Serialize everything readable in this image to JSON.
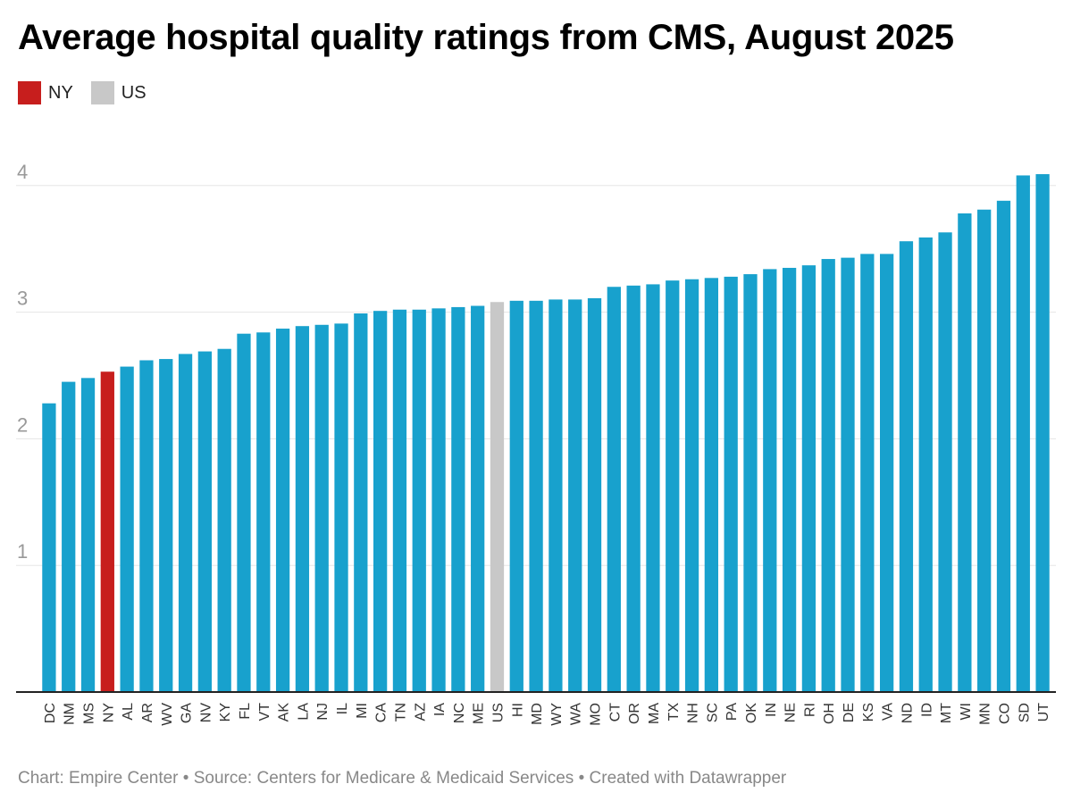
{
  "title": "Average hospital quality ratings from CMS, August 2025",
  "legend": [
    {
      "label": "NY",
      "color": "#c71e1d"
    },
    {
      "label": "US",
      "color": "#c8c8c8"
    }
  ],
  "colors": {
    "default_bar": "#18a1cd",
    "highlight_ny": "#c71e1d",
    "highlight_us": "#c8c8c8",
    "gridline": "#e6e6e6",
    "tick_label": "#999999",
    "axis": "#222222"
  },
  "footer": {
    "chart_credit": "Chart: Empire Center",
    "source": "Source: Centers for Medicare & Medicaid Services",
    "created_with": "Created with Datawrapper",
    "separator": "•"
  },
  "chart_data": {
    "type": "bar",
    "title": "Average hospital quality ratings from CMS, August 2025",
    "xlabel": "",
    "ylabel": "",
    "ylim": [
      0,
      4.1
    ],
    "yticks": [
      1,
      2,
      3,
      4
    ],
    "grid": true,
    "legend_position": "top-left",
    "categories": [
      "DC",
      "NM",
      "MS",
      "NY",
      "AL",
      "AR",
      "WV",
      "GA",
      "NV",
      "KY",
      "FL",
      "VT",
      "AK",
      "LA",
      "NJ",
      "IL",
      "MI",
      "CA",
      "TN",
      "AZ",
      "IA",
      "NC",
      "ME",
      "US",
      "HI",
      "MD",
      "WY",
      "WA",
      "MO",
      "CT",
      "OR",
      "MA",
      "TX",
      "NH",
      "SC",
      "PA",
      "OK",
      "IN",
      "NE",
      "RI",
      "OH",
      "DE",
      "KS",
      "VA",
      "ND",
      "ID",
      "MT",
      "WI",
      "MN",
      "CO",
      "SD",
      "UT"
    ],
    "values": [
      2.28,
      2.45,
      2.48,
      2.53,
      2.57,
      2.62,
      2.63,
      2.67,
      2.69,
      2.71,
      2.83,
      2.84,
      2.87,
      2.89,
      2.9,
      2.91,
      2.99,
      3.01,
      3.02,
      3.02,
      3.03,
      3.04,
      3.05,
      3.08,
      3.09,
      3.09,
      3.1,
      3.1,
      3.11,
      3.2,
      3.21,
      3.22,
      3.25,
      3.26,
      3.27,
      3.28,
      3.3,
      3.34,
      3.35,
      3.37,
      3.42,
      3.43,
      3.46,
      3.46,
      3.56,
      3.59,
      3.63,
      3.78,
      3.81,
      3.88,
      4.08,
      4.09
    ],
    "highlights": {
      "NY": "#c71e1d",
      "US": "#c8c8c8"
    }
  }
}
